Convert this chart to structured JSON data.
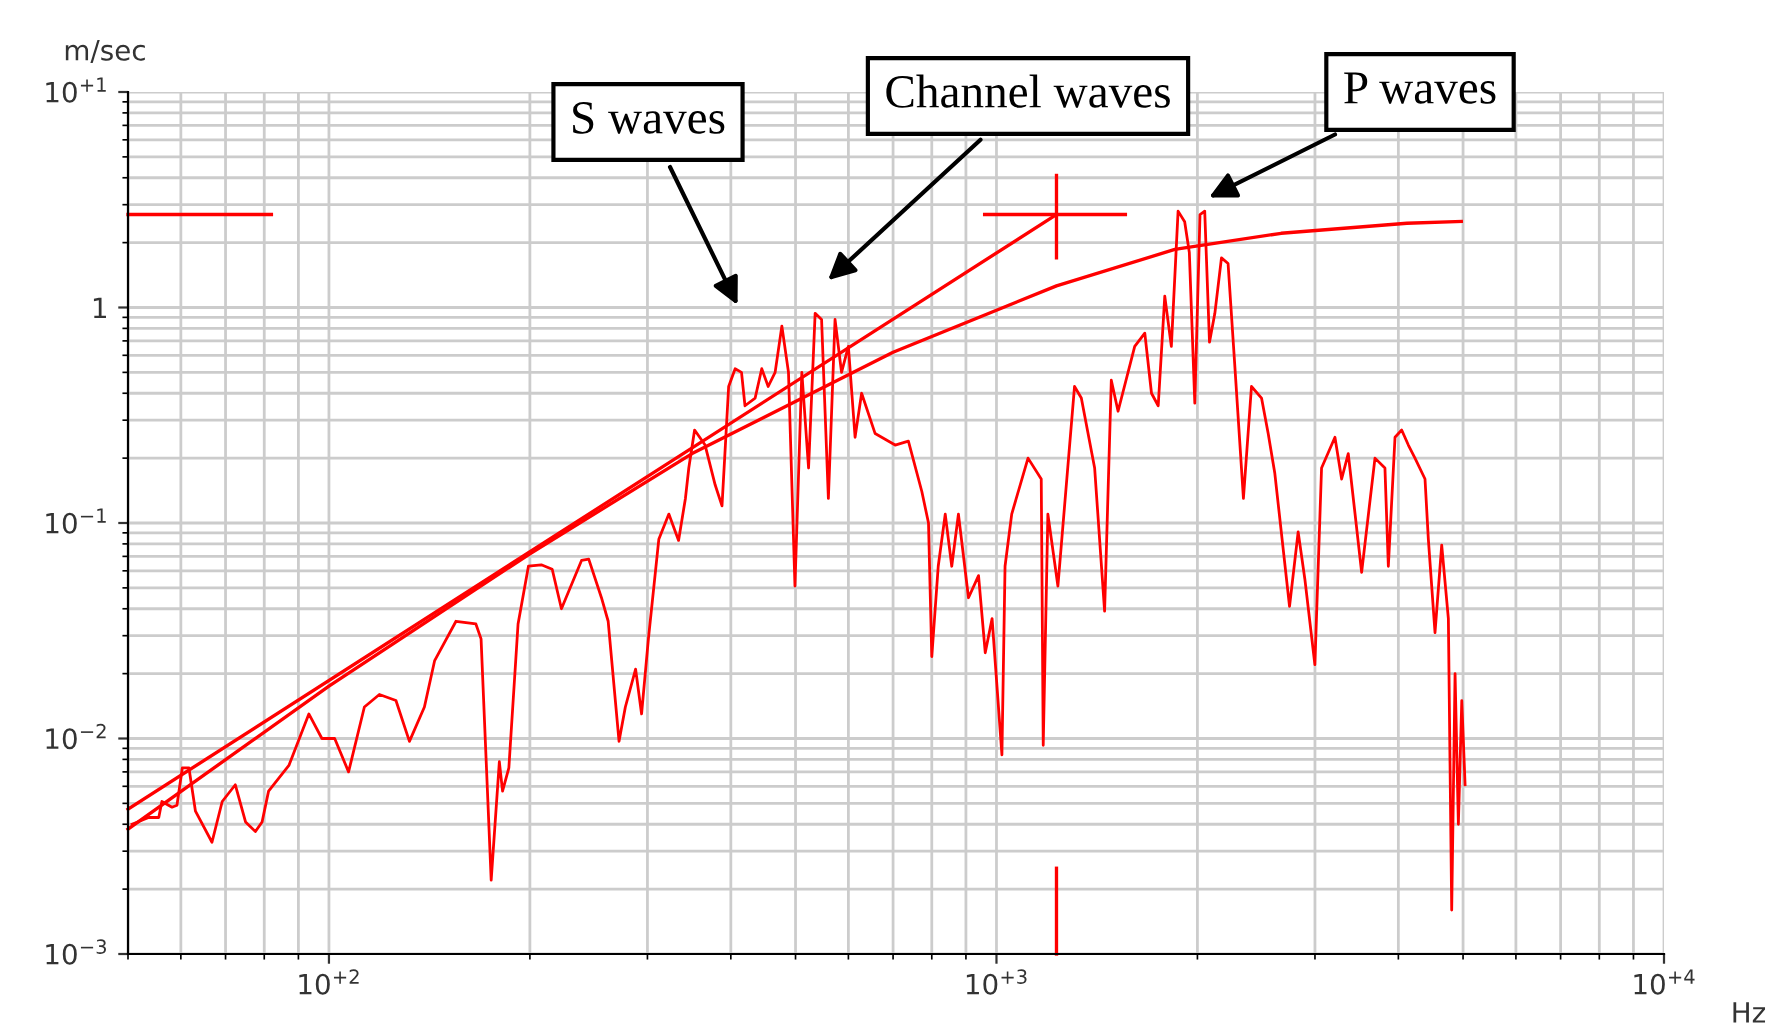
{
  "chart_data": {
    "type": "line",
    "xlabel": "Hz",
    "ylabel": "m/sec",
    "log": "xy",
    "grid": true,
    "xlim": [
      50,
      10000
    ],
    "ylim": [
      0.001,
      10
    ],
    "xticks": [
      {
        "value": 100,
        "label": "10$^{+2}$"
      },
      {
        "value": 1000,
        "label": "10$^{+3}$"
      },
      {
        "value": 10000,
        "label": "10$^{+4}$"
      }
    ],
    "yticks": [
      {
        "value": 0.001,
        "label": "10$^{−3}$"
      },
      {
        "value": 0.01,
        "label": "10$^{−2}$"
      },
      {
        "value": 0.1,
        "label": "10$^{−1}$"
      },
      1,
      {
        "value": 10,
        "label": "10$^{+1}$"
      }
    ],
    "series": [
      {
        "color": "#ff0000",
        "x": [
          50.7,
          53.7,
          55.6,
          56.2,
          58.2,
          59.2,
          60.3,
          61.7,
          63.1,
          66.8,
          69.2,
          72.4,
          75.0,
          77.6,
          79.4,
          81.2,
          87.1,
          93.3,
          97.6,
          102,
          107,
          113,
          119,
          126,
          132,
          139,
          144,
          155,
          166,
          169,
          175,
          180,
          182,
          186,
          192,
          199,
          208,
          216,
          223,
          239,
          245,
          256,
          262,
          272,
          278,
          288,
          294,
          301,
          312,
          323,
          334,
          342,
          346,
          353,
          366,
          379,
          388,
          397,
          406,
          415,
          420,
          435,
          445,
          455,
          466,
          477,
          488,
          499,
          511,
          523,
          535,
          547,
          560,
          573,
          586,
          600,
          614,
          628,
          658,
          705,
          738,
          773,
          791,
          800,
          818,
          838,
          857,
          877,
          908,
          940,
          962,
          985,
          1019,
          1030,
          1054,
          1115,
          1167,
          1175,
          1194,
          1236,
          1309,
          1340,
          1403,
          1452,
          1486,
          1521,
          1611,
          1668,
          1707,
          1747,
          1787,
          1828,
          1871,
          1914,
          1945,
          1982,
          2018,
          2051,
          2085,
          2124,
          2173,
          2223,
          2275,
          2344,
          2410,
          2495,
          2553,
          2612,
          2748,
          2831,
          2897,
          2999,
          3069,
          3214,
          3289,
          3365,
          3524,
          3690,
          3819,
          3864,
          3954,
          4046,
          4140,
          4236,
          4385,
          4436,
          4539,
          4645,
          4753,
          4808,
          4864,
          4920,
          4978,
          5035
        ],
        "values": [
          0.004,
          0.0043,
          0.0043,
          0.0051,
          0.0048,
          0.0049,
          0.0073,
          0.0073,
          0.0046,
          0.0033,
          0.0051,
          0.0061,
          0.0041,
          0.0037,
          0.0041,
          0.0057,
          0.0075,
          0.013,
          0.01,
          0.01,
          0.007,
          0.014,
          0.016,
          0.015,
          0.0097,
          0.014,
          0.023,
          0.035,
          0.034,
          0.029,
          0.0022,
          0.0078,
          0.0057,
          0.0073,
          0.034,
          0.063,
          0.064,
          0.061,
          0.04,
          0.067,
          0.068,
          0.045,
          0.035,
          0.0097,
          0.014,
          0.021,
          0.013,
          0.029,
          0.084,
          0.11,
          0.083,
          0.13,
          0.18,
          0.27,
          0.23,
          0.15,
          0.12,
          0.43,
          0.52,
          0.5,
          0.35,
          0.38,
          0.52,
          0.43,
          0.5,
          0.82,
          0.5,
          0.051,
          0.5,
          0.18,
          0.94,
          0.88,
          0.13,
          0.88,
          0.5,
          0.66,
          0.25,
          0.4,
          0.26,
          0.23,
          0.24,
          0.14,
          0.1,
          0.024,
          0.063,
          0.11,
          0.063,
          0.11,
          0.045,
          0.057,
          0.025,
          0.036,
          0.0084,
          0.063,
          0.11,
          0.2,
          0.16,
          0.0093,
          0.11,
          0.051,
          0.43,
          0.38,
          0.18,
          0.039,
          0.46,
          0.33,
          0.66,
          0.76,
          0.4,
          0.35,
          1.13,
          0.66,
          2.8,
          2.5,
          1.8,
          0.36,
          2.7,
          2.8,
          0.69,
          0.94,
          1.7,
          1.6,
          0.54,
          0.13,
          0.43,
          0.38,
          0.26,
          0.17,
          0.041,
          0.091,
          0.055,
          0.022,
          0.18,
          0.25,
          0.16,
          0.21,
          0.059,
          0.2,
          0.18,
          0.063,
          0.25,
          0.27,
          0.23,
          0.2,
          0.16,
          0.084,
          0.031,
          0.079,
          0.036,
          0.0016,
          0.02,
          0.004,
          0.015,
          0.0061
        ]
      },
      {
        "color": "#ff0000",
        "x": [
          50,
          100,
          200,
          350,
          700,
          1230,
          1850,
          2670,
          4120,
          4970
        ],
        "values": [
          0.0038,
          0.0175,
          0.072,
          0.21,
          0.62,
          1.26,
          1.86,
          2.21,
          2.46,
          2.51
        ]
      },
      {
        "color": "#ff0000",
        "x": [
          50,
          1230
        ],
        "values": [
          0.0047,
          2.7
        ]
      },
      {
        "color": "#ff0000",
        "x": [
          50,
          82
        ],
        "values": [
          2.7,
          2.7
        ]
      },
      {
        "color": "#ff0000",
        "x": [
          960,
          1560
        ],
        "values": [
          2.7,
          2.7
        ]
      },
      {
        "color": "#ff0000",
        "x": [
          1230,
          1230
        ],
        "values": [
          1.7,
          4.1
        ]
      },
      {
        "color": "#ff0000",
        "x": [
          1230,
          1230
        ],
        "values": [
          0.001,
          0.0025
        ]
      }
    ],
    "annotations": [
      "S waves",
      "Channel waves",
      "P waves"
    ]
  }
}
